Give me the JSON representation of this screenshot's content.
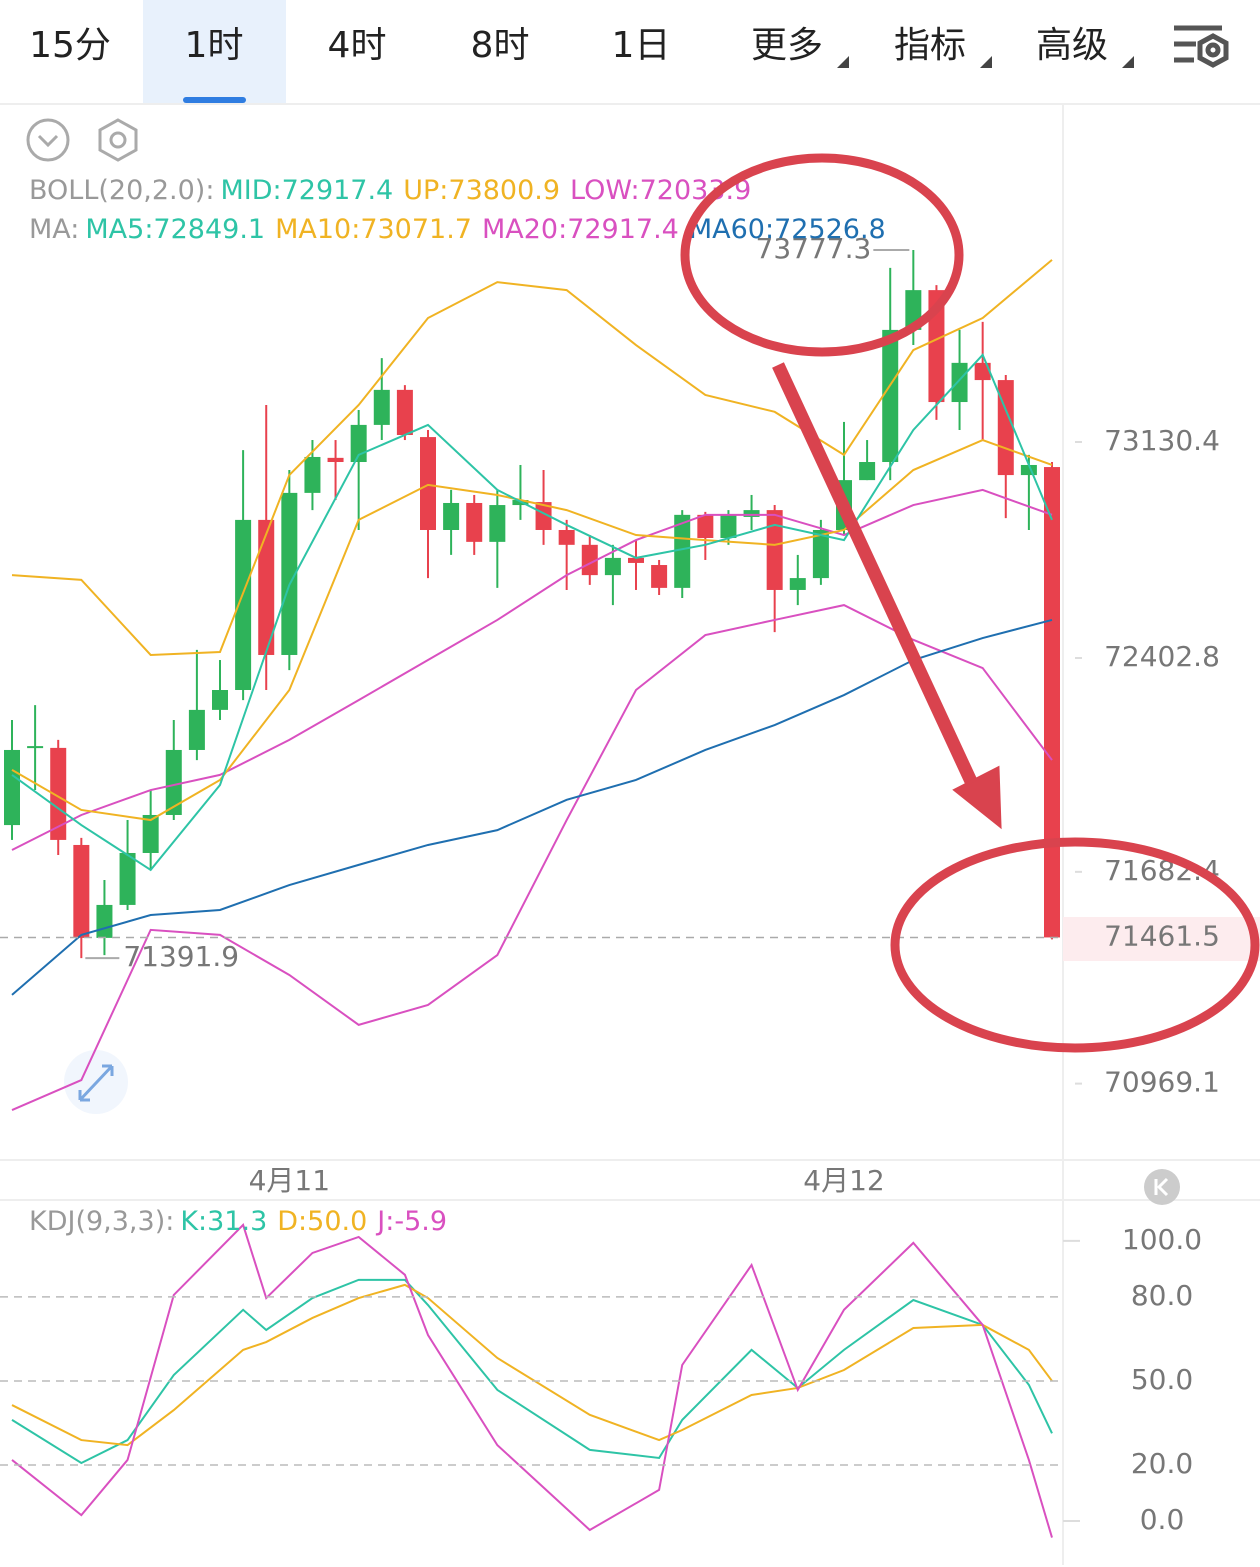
{
  "tabs": [
    "15分",
    "1时",
    "4时",
    "8时",
    "1日",
    "更多",
    "指标",
    "高级"
  ],
  "active_tab": 1,
  "chart_data": [
    {
      "type": "candlestick",
      "categories": [
        null,
        null,
        null,
        null,
        null,
        null,
        null,
        null,
        null,
        null,
        null,
        null,
        "4月11",
        null,
        null,
        null,
        null,
        null,
        null,
        null,
        null,
        null,
        null,
        null,
        null,
        null,
        null,
        null,
        null,
        null,
        null,
        null,
        null,
        null,
        null,
        null,
        "4月12",
        null,
        null,
        null,
        null,
        null,
        null,
        null,
        null,
        null
      ],
      "open": [
        71840,
        72100,
        72100,
        71773,
        71460,
        71571,
        71746,
        71874,
        72093,
        72228,
        72295,
        72868,
        72413,
        72959,
        73077,
        73063,
        73188,
        73306,
        73147,
        72834,
        72925,
        72794,
        72918,
        72928,
        72834,
        72784,
        72682,
        72740,
        72716,
        72639,
        72885,
        72807,
        72878,
        72901,
        72632,
        72672,
        72834,
        73002,
        73063,
        73508,
        73642,
        73265,
        73397,
        73339,
        73019,
        73046
      ],
      "high": [
        72194,
        72244,
        72127,
        71797,
        71655,
        71857,
        71958,
        72194,
        72430,
        72396,
        73103,
        73255,
        73036,
        73137,
        73137,
        73238,
        73413,
        73322,
        73171,
        72969,
        72952,
        72969,
        73053,
        73036,
        72868,
        72817,
        72784,
        72800,
        72733,
        72901,
        72895,
        72901,
        72952,
        72918,
        72750,
        72868,
        73198,
        73137,
        73717,
        73777.3,
        73659,
        73508,
        73535,
        73356,
        73087,
        73063
      ],
      "low": [
        71790,
        71958,
        71739,
        71391.9,
        71402,
        71554,
        71689,
        71857,
        72059,
        72194,
        72261,
        72295,
        72362,
        72901,
        72935,
        72834,
        73137,
        73137,
        72672,
        72750,
        72750,
        72639,
        72868,
        72784,
        72632,
        72649,
        72581,
        72632,
        72615,
        72605,
        72733,
        72784,
        72834,
        72490,
        72581,
        72649,
        72817,
        73002,
        73002,
        73457,
        73205,
        73171,
        73137,
        72874,
        72834,
        71455
      ],
      "close": [
        72093,
        72106,
        71790,
        71460,
        71571,
        71746,
        71874,
        72093,
        72228,
        72295,
        72868,
        72413,
        72959,
        73080,
        73063,
        73188,
        73306,
        73154,
        72834,
        72925,
        72794,
        72918,
        72935,
        72834,
        72784,
        72682,
        72740,
        72723,
        72639,
        72885,
        72807,
        72885,
        72901,
        72632,
        72672,
        72834,
        73002,
        73063,
        73508,
        73642,
        73265,
        73397,
        73339,
        73019,
        73053,
        71461.5
      ],
      "up_color": "#2eb35a",
      "down_color": "#e8414d",
      "lines": [
        {
          "name": "UP",
          "color": "#f0b323",
          "x": [
            0,
            3,
            6,
            9,
            12,
            15,
            18,
            21,
            24,
            27,
            30,
            33,
            36,
            39,
            42,
            45
          ],
          "values": [
            72682,
            72666,
            72413,
            72423,
            73019,
            73255,
            73548,
            73669,
            73642,
            73457,
            73289,
            73232,
            73087,
            73440,
            73548,
            73744
          ]
        },
        {
          "name": "LOW",
          "color": "#d950c0",
          "x": [
            0,
            3,
            6,
            9,
            12,
            15,
            18,
            21,
            24,
            27,
            30,
            33,
            36,
            39,
            42,
            45
          ],
          "values": [
            70880,
            70981,
            71487,
            71470,
            71335,
            71167,
            71234,
            71402,
            71857,
            72295,
            72480,
            72531,
            72581,
            72464,
            72369,
            72059
          ]
        },
        {
          "name": "MID",
          "color": "#d950c0",
          "x": [
            0,
            3,
            6,
            9,
            12,
            15,
            18,
            21,
            24,
            27,
            30,
            33,
            36,
            39,
            42,
            45
          ],
          "values": [
            71756,
            71874,
            71958,
            72009,
            72127,
            72261,
            72396,
            72531,
            72682,
            72800,
            72885,
            72885,
            72817,
            72918,
            72969,
            72885
          ]
        },
        {
          "name": "MA60",
          "color": "#1f6fb0",
          "x": [
            0,
            3,
            6,
            9,
            12,
            15,
            18,
            21,
            24,
            27,
            30,
            33,
            36,
            39,
            42,
            45
          ],
          "values": [
            71268,
            71470,
            71537,
            71554,
            71638,
            71706,
            71773,
            71823,
            71925,
            71992,
            72093,
            72177,
            72278,
            72396,
            72470,
            72531
          ]
        },
        {
          "name": "MA10",
          "color": "#f0b323",
          "x": [
            0,
            3,
            6,
            9,
            12,
            15,
            18,
            21,
            24,
            27,
            30,
            33,
            36,
            39,
            42,
            45
          ],
          "values": [
            72026,
            71891,
            71857,
            71992,
            72295,
            72868,
            72986,
            72952,
            72901,
            72817,
            72800,
            72784,
            72834,
            73036,
            73137,
            73053
          ]
        },
        {
          "name": "MA5",
          "color": "#2ec4a6",
          "x": [
            0,
            3,
            6,
            9,
            12,
            15,
            18,
            21,
            24,
            27,
            30,
            33,
            36,
            39,
            42,
            45
          ],
          "values": [
            72009,
            71840,
            71689,
            71975,
            72649,
            73087,
            73188,
            72969,
            72851,
            72740,
            72784,
            72851,
            72800,
            73171,
            73424,
            72868
          ]
        }
      ],
      "legends": [
        {
          "label": "BOLL(20,2.0):",
          "items": [
            {
              "text": "MID:72917.4",
              "color": "#2ec4a6"
            },
            {
              "text": "UP:73800.9",
              "color": "#f0b323"
            },
            {
              "text": "LOW:72033.9",
              "color": "#d950c0"
            }
          ]
        },
        {
          "label": "MA:",
          "items": [
            {
              "text": "MA5:72849.1",
              "color": "#2ec4a6"
            },
            {
              "text": "MA10:73071.7",
              "color": "#f0b323"
            },
            {
              "text": "MA20:72917.4",
              "color": "#d950c0"
            },
            {
              "text": "MA60:72526.8",
              "color": "#1f6fb0"
            }
          ]
        }
      ],
      "ylim": [
        70711.8,
        74265.6
      ],
      "yticks": [
        73130.4,
        72402.8,
        71682.4,
        70969.1
      ]
    },
    {
      "type": "line",
      "legend_label": "KDJ(9,3,3):",
      "series": [
        {
          "name": "K",
          "legend": "K:31.3",
          "color": "#2ec4a6",
          "x": [
            0,
            3,
            5,
            7,
            10,
            11,
            13,
            15,
            17,
            18,
            21,
            25,
            28,
            29,
            32,
            34,
            36,
            39,
            42,
            44,
            45
          ],
          "values": [
            36.1,
            20.7,
            28.9,
            52.1,
            75.4,
            68.2,
            79.6,
            86.1,
            86.1,
            77.1,
            46.8,
            25.4,
            22.5,
            36.1,
            61.1,
            47.5,
            61.1,
            78.9,
            70,
            48.6,
            31.3
          ]
        },
        {
          "name": "D",
          "legend": "D:50.0",
          "color": "#f0b323",
          "x": [
            0,
            3,
            5,
            7,
            10,
            11,
            13,
            15,
            17,
            18,
            21,
            25,
            28,
            29,
            32,
            34,
            36,
            39,
            42,
            44,
            45
          ],
          "values": [
            41.4,
            28.9,
            27.1,
            39.6,
            61.1,
            63.9,
            72.5,
            79.6,
            84.3,
            79.6,
            58.2,
            37.9,
            28.9,
            32.5,
            45,
            47.5,
            53.9,
            68.9,
            70,
            61.1,
            50.0
          ]
        },
        {
          "name": "J",
          "legend": "J:-5.9",
          "color": "#d950c0",
          "x": [
            0,
            3,
            5,
            7,
            10,
            11,
            13,
            15,
            17,
            18,
            21,
            25,
            28,
            29,
            32,
            34,
            36,
            39,
            42,
            44,
            45
          ],
          "values": [
            21.8,
            2.1,
            21.8,
            80.7,
            105.7,
            79.6,
            95.7,
            101.4,
            87.9,
            66.4,
            27.1,
            -3.2,
            11.1,
            55.7,
            91.4,
            46.8,
            75.4,
            99.3,
            70,
            21.8,
            -5.9
          ]
        }
      ],
      "ylim": [
        -15.7,
        114.6
      ],
      "yticks": [
        {
          "value": 100,
          "label": "100.0"
        },
        {
          "value": 80,
          "label": "80.0"
        },
        {
          "value": 50,
          "label": "50.0"
        },
        {
          "value": 20,
          "label": "20.0"
        },
        {
          "value": 0,
          "label": "0.0"
        }
      ]
    }
  ]
}
